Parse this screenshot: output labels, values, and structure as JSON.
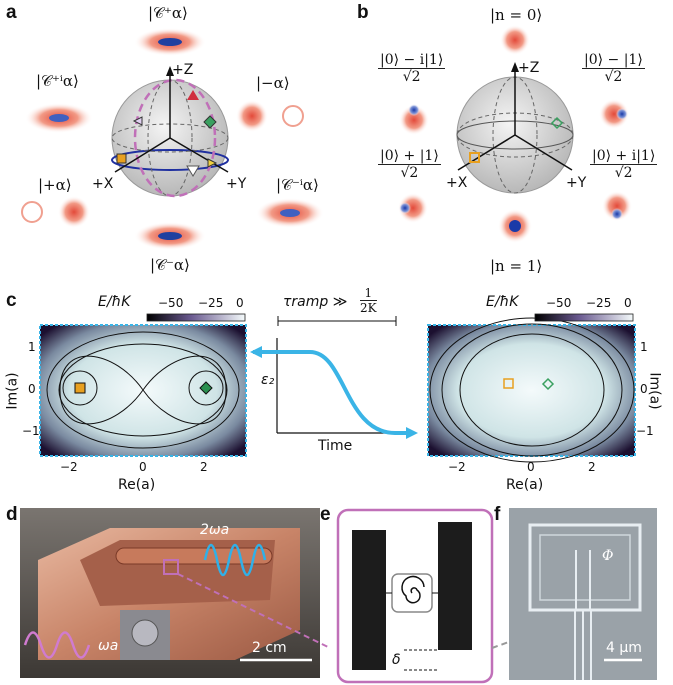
{
  "panels": {
    "a": {
      "label": "a",
      "top": "|𝒞⁺α⟩",
      "left": "|𝒞⁺ⁱα⟩",
      "right": "|−α⟩",
      "left_bottom": "|+α⟩",
      "right_bottom": "|𝒞⁻ⁱα⟩",
      "bottom": "|𝒞⁻α⟩",
      "axis_z": "+Z",
      "axis_x": "+X",
      "axis_y": "+Y"
    },
    "b": {
      "label": "b",
      "top": "|n = 0⟩",
      "bottom": "|n = 1⟩",
      "ul_num": "|0⟩ − i|1⟩",
      "ul_den": "√2",
      "ur_num": "|0⟩ − |1⟩",
      "ur_den": "√2",
      "ll_num": "|0⟩ + |1⟩",
      "ll_den": "√2",
      "lr_num": "|0⟩ + i|1⟩",
      "lr_den": "√2",
      "axis_z": "+Z",
      "axis_x": "+X",
      "axis_y": "+Y"
    },
    "c": {
      "label": "c",
      "colorbar_title": "E/ħK",
      "colorbar_ticks": [
        "−50",
        "−25",
        "0"
      ],
      "tau_label": "τramp ≫",
      "frac_num": "1",
      "frac_den": "2K",
      "eps_label": "ε₂",
      "time_label": "Time",
      "left_xlabel": "Re(a)",
      "left_ylabel": "Im(a)",
      "right_xlabel": "Re(a)",
      "right_ylabel": "Im(a)",
      "left_xticks": [
        "−2",
        "0",
        "2"
      ],
      "left_yticks": [
        "1",
        "0",
        "−1"
      ],
      "right_xticks": [
        "−2",
        "0",
        "2"
      ],
      "right_yticks": [
        "1",
        "0",
        "−1"
      ]
    },
    "d": {
      "label": "d",
      "omega2": "2ωa",
      "omega": "ωa",
      "scale": "2 cm"
    },
    "e": {
      "label": "e",
      "delta": "δ"
    },
    "f": {
      "label": "f",
      "phi": "Φ",
      "scale": "4 μm"
    }
  },
  "colors": {
    "accent_blue": "#3ab4e6",
    "magenta": "#c070b8",
    "sphere": "#d8d8d8",
    "orange": "#e8a020",
    "green": "#3aa060"
  }
}
